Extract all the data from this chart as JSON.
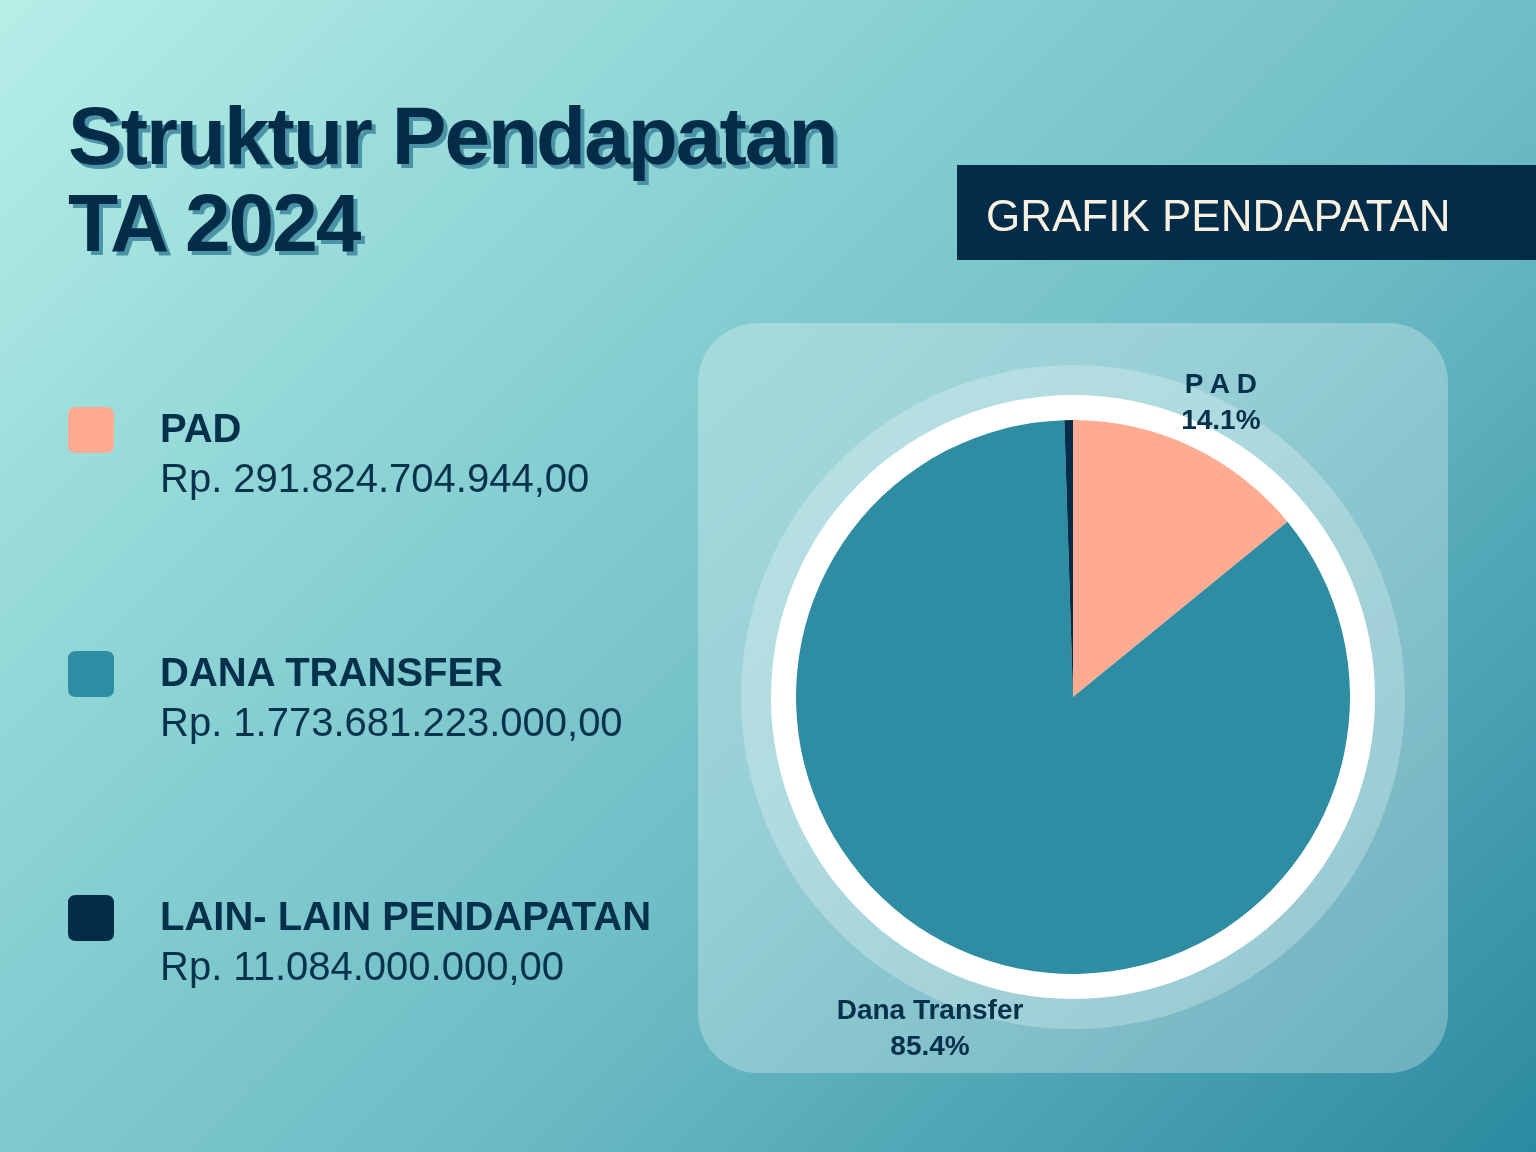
{
  "chart_data": {
    "type": "pie",
    "title": "Struktur Pendapatan TA 2024",
    "subtitle": "GRAFIK PENDAPATAN",
    "categories": [
      "PAD",
      "DANA TRANSFER",
      "LAIN- LAIN PENDAPATAN"
    ],
    "values": [
      14.1,
      85.4,
      0.5
    ],
    "colors": [
      "#ffab92",
      "#2e8da3",
      "#032c48"
    ],
    "value_labels": [
      "P A D\n14.1%",
      "Dana Transfer\n85.4%",
      null
    ],
    "annotations": [
      "Rp. 291.824.704.944,00",
      "Rp. 1.773.681.223.000,00",
      "Rp. 11.084.000.000,00"
    ],
    "legend": "left"
  }
}
